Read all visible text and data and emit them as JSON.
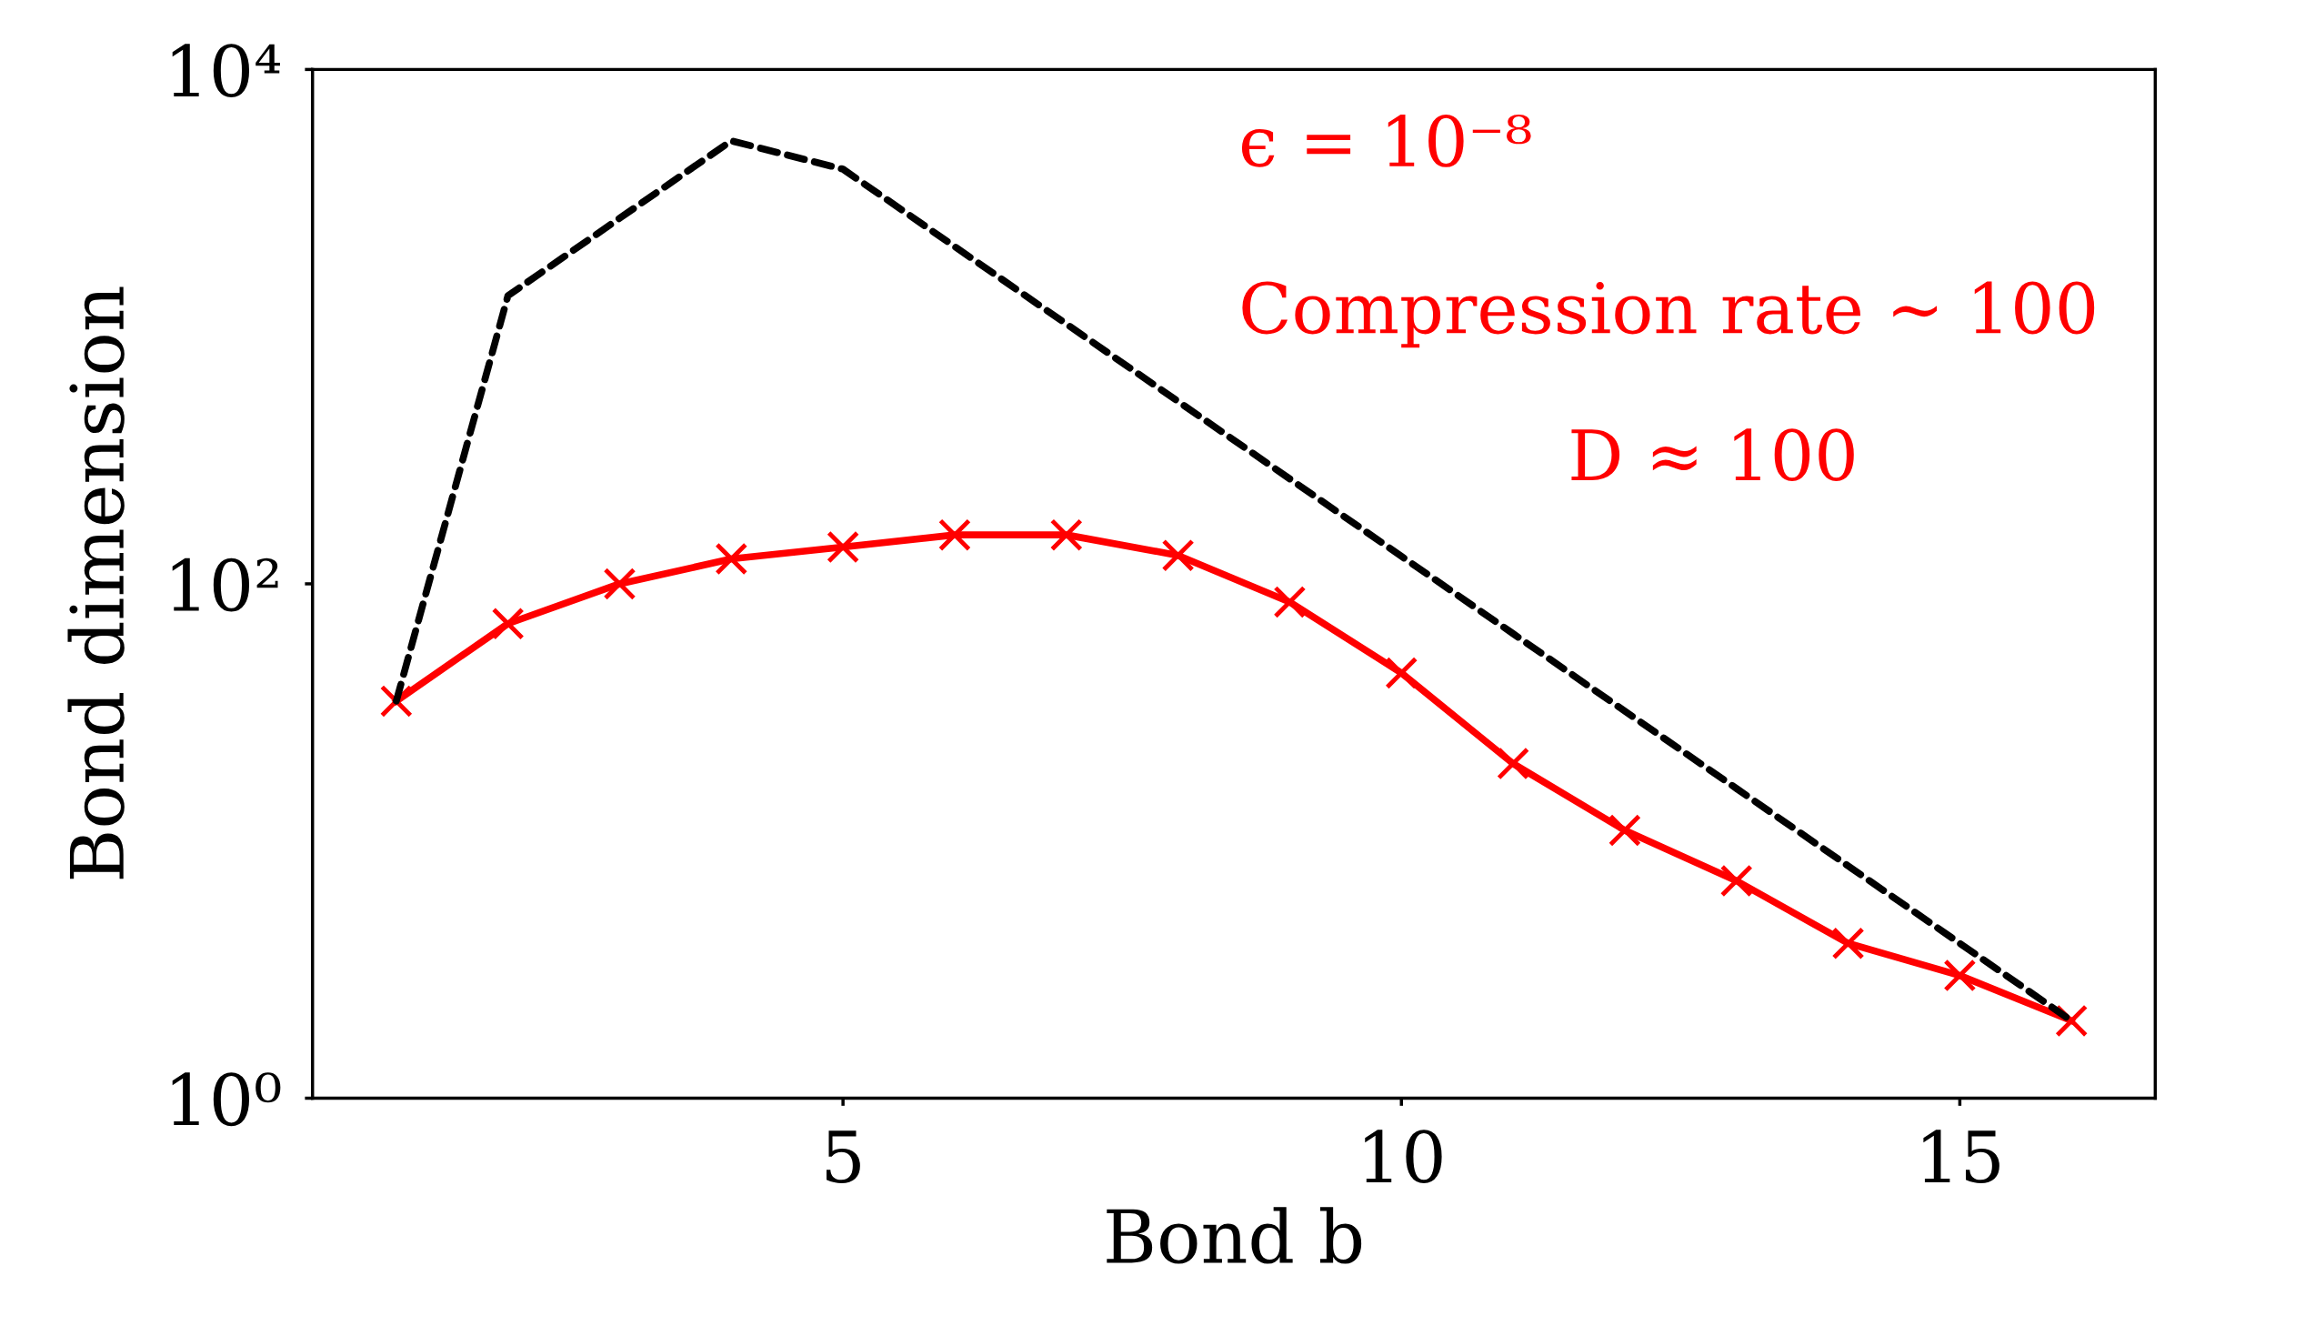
{
  "chart_data": {
    "type": "line",
    "xlabel": "Bond b",
    "ylabel": "Bond dimension",
    "x": [
      1,
      2,
      3,
      4,
      5,
      6,
      7,
      8,
      9,
      10,
      11,
      12,
      13,
      14,
      15,
      16
    ],
    "series": [
      {
        "color": "#000000",
        "line_style": "dashed",
        "marker": "none",
        "values": [
          35,
          1320,
          2640,
          5280,
          4096,
          2048,
          1024,
          512,
          256,
          128,
          64,
          32,
          16,
          8,
          4,
          2
        ]
      },
      {
        "color": "#ff0000",
        "line_style": "solid",
        "marker": "cross",
        "values": [
          35,
          70,
          100,
          125,
          139,
          155,
          155,
          129,
          85,
          45,
          20,
          11,
          7,
          4,
          3,
          2
        ]
      }
    ],
    "log": "y",
    "xlim": [
      0.25,
      16.75
    ],
    "xticks": [
      5,
      10,
      15
    ],
    "ylim": [
      1,
      10000
    ],
    "yticks": [
      {
        "value": 1,
        "label": "10⁰"
      },
      {
        "value": 100,
        "label": "10²"
      },
      {
        "value": 10000,
        "label": "10⁴"
      }
    ],
    "grid": false,
    "legend": false,
    "annotations": [
      "ϵ = 10⁻⁸",
      "Compression rate ~ 100",
      "D ≈ 100"
    ]
  }
}
